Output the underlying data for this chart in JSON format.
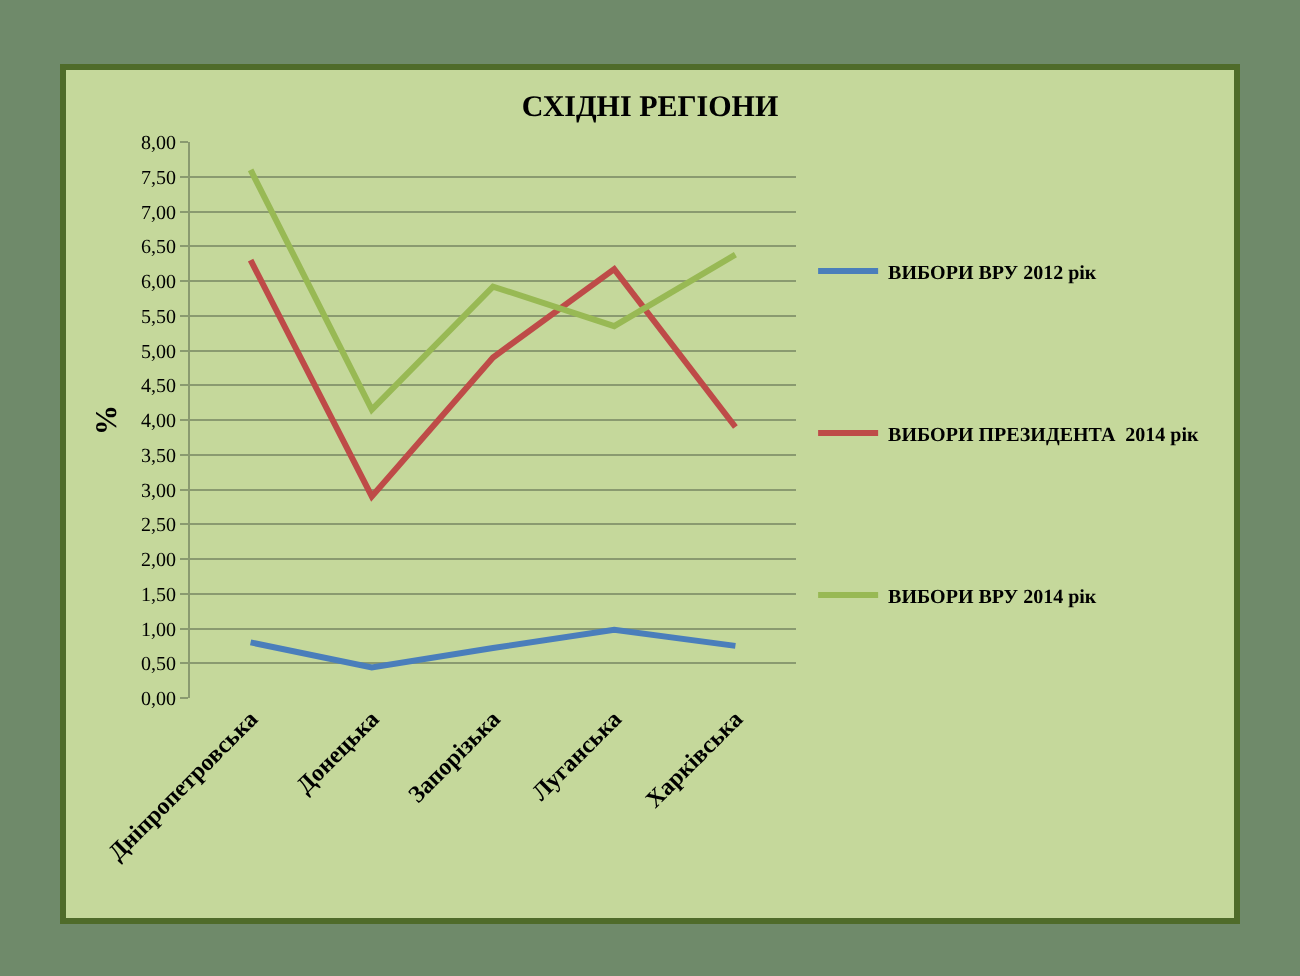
{
  "chart_data": {
    "type": "line",
    "title": "СХІДНІ РЕГІОНИ",
    "ylabel": "%",
    "categories": [
      "Дніпропетровська",
      "Донецька",
      "Запорізька",
      "Луганська",
      "Харківська"
    ],
    "series": [
      {
        "name": "ВИБОРИ ВРУ 2012 рік",
        "color": "#4a7ebb",
        "values": [
          0.8,
          0.44,
          0.72,
          0.98,
          0.75
        ]
      },
      {
        "name": "ВИБОРИ ПРЕЗИДЕНТА  2014 рік",
        "color": "#be4b48",
        "values": [
          6.3,
          2.9,
          4.9,
          6.17,
          3.9
        ]
      },
      {
        "name": "ВИБОРИ ВРУ 2014 рік",
        "color": "#98b954",
        "values": [
          7.6,
          4.15,
          5.92,
          5.35,
          6.38
        ]
      }
    ],
    "ylim": [
      0,
      8
    ],
    "yticks": [
      {
        "value": 0,
        "label": "0,00"
      },
      {
        "value": 0.5,
        "label": "0,50"
      },
      {
        "value": 1,
        "label": "1,00"
      },
      {
        "value": 1.5,
        "label": "1,50"
      },
      {
        "value": 2,
        "label": "2,00"
      },
      {
        "value": 2.5,
        "label": "2,50"
      },
      {
        "value": 3,
        "label": "3,00"
      },
      {
        "value": 3.5,
        "label": "3,50"
      },
      {
        "value": 4,
        "label": "4,00"
      },
      {
        "value": 4.5,
        "label": "4,50"
      },
      {
        "value": 5,
        "label": "5,00"
      },
      {
        "value": 5.5,
        "label": "5,50"
      },
      {
        "value": 6,
        "label": "6,00"
      },
      {
        "value": 6.5,
        "label": "6,50"
      },
      {
        "value": 7,
        "label": "7,00"
      },
      {
        "value": 7.5,
        "label": "7,50"
      },
      {
        "value": 8,
        "label": "8,00"
      }
    ],
    "grid": "y",
    "legend": "right",
    "marker": "none",
    "line_style": "solid"
  }
}
